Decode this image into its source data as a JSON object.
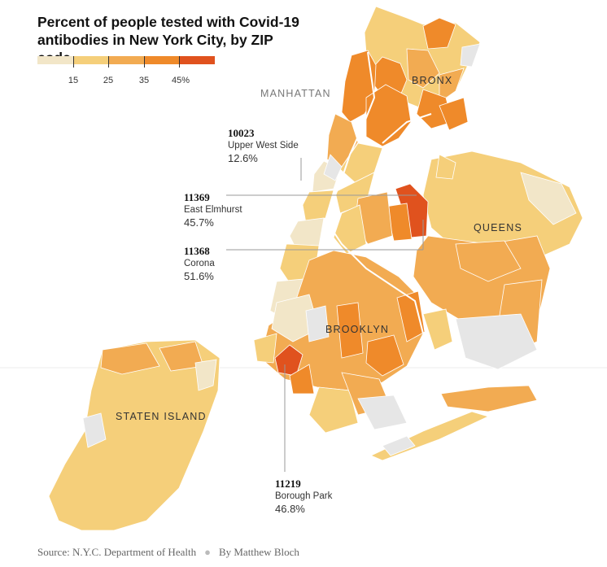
{
  "title_lines": [
    "Percent of people tested with Covid-19",
    "antibodies in New York City, by ZIP code"
  ],
  "legend": {
    "colors": [
      "#f2e6c8",
      "#f5cf7a",
      "#f2ab52",
      "#ef8a2a",
      "#e0521e"
    ],
    "tick_labels": [
      "15",
      "25",
      "35",
      "45%"
    ]
  },
  "boroughs": {
    "manhattan": "MANHATTAN",
    "bronx": "BRONX",
    "queens": "QUEENS",
    "brooklyn": "BROOKLYN",
    "staten_island": "STATEN ISLAND"
  },
  "callouts": [
    {
      "zip": "10023",
      "name": "Upper West Side",
      "pct": "12.6%"
    },
    {
      "zip": "11369",
      "name": "East Elmhurst",
      "pct": "45.7%"
    },
    {
      "zip": "11368",
      "name": "Corona",
      "pct": "51.6%"
    },
    {
      "zip": "11219",
      "name": "Borough Park",
      "pct": "46.8%"
    }
  ],
  "source": {
    "text": "Source: N.Y.C. Department of Health",
    "byline": "By Matthew Bloch"
  },
  "map_colors": {
    "no_data": "#e6e6e6",
    "c1": "#f2e6c8",
    "c2": "#f5cf7a",
    "c3": "#f2ab52",
    "c4": "#ef8a2a",
    "c5": "#e0521e"
  }
}
